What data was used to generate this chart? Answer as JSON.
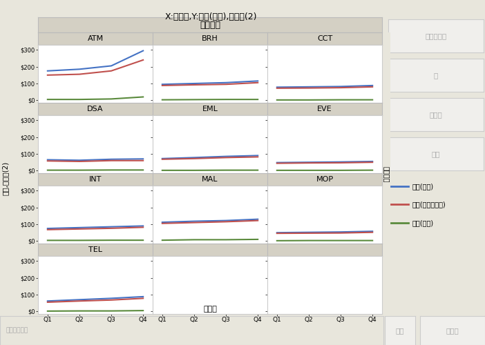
{
  "title": "X:四半期,Y:平均(収益),その他(2)",
  "xlabel": "四半期",
  "ylabel": "収益,その他(2)",
  "channel_header": "チャネル",
  "quarters": [
    "Q1",
    "Q2",
    "Q3",
    "Q4"
  ],
  "channels_grid": [
    [
      "ATM",
      "BRH",
      "CCT"
    ],
    [
      "DSA",
      "EML",
      "EVE"
    ],
    [
      "INT",
      "MAL",
      "MOP"
    ],
    [
      "TEL",
      null,
      null
    ]
  ],
  "series": {
    "ATM": {
      "revenue": [
        175,
        185,
        205,
        295
      ],
      "cogs": [
        150,
        155,
        175,
        240
      ],
      "profit": [
        5,
        5,
        8,
        20
      ]
    },
    "BRH": {
      "revenue": [
        95,
        100,
        105,
        115
      ],
      "cogs": [
        88,
        92,
        95,
        105
      ],
      "profit": [
        3,
        4,
        5,
        5
      ]
    },
    "CCT": {
      "revenue": [
        78,
        80,
        82,
        88
      ],
      "cogs": [
        72,
        73,
        75,
        80
      ],
      "profit": [
        2,
        2,
        3,
        3
      ]
    },
    "DSA": {
      "revenue": [
        65,
        62,
        68,
        70
      ],
      "cogs": [
        58,
        55,
        60,
        60
      ],
      "profit": [
        3,
        3,
        4,
        4
      ]
    },
    "EML": {
      "revenue": [
        72,
        78,
        85,
        90
      ],
      "cogs": [
        68,
        72,
        78,
        82
      ],
      "profit": [
        2,
        2,
        3,
        3
      ]
    },
    "EVE": {
      "revenue": [
        48,
        50,
        52,
        55
      ],
      "cogs": [
        44,
        46,
        47,
        50
      ],
      "profit": [
        2,
        2,
        2,
        3
      ]
    },
    "INT": {
      "revenue": [
        75,
        80,
        85,
        90
      ],
      "cogs": [
        68,
        72,
        76,
        82
      ],
      "profit": [
        4,
        4,
        5,
        5
      ]
    },
    "MAL": {
      "revenue": [
        112,
        118,
        122,
        130
      ],
      "cogs": [
        105,
        110,
        115,
        122
      ],
      "profit": [
        5,
        8,
        8,
        10
      ]
    },
    "MOP": {
      "revenue": [
        50,
        52,
        54,
        58
      ],
      "cogs": [
        46,
        47,
        48,
        52
      ],
      "profit": [
        2,
        3,
        3,
        3
      ]
    },
    "TEL": {
      "revenue": [
        62,
        70,
        78,
        88
      ],
      "cogs": [
        55,
        62,
        68,
        78
      ],
      "profit": [
        2,
        3,
        3,
        5
      ]
    }
  },
  "colors": {
    "revenue": "#4472C4",
    "cogs": "#C0504D",
    "profit": "#5A8A3C"
  },
  "legend_labels": [
    "平均(収益)",
    "平均(商品コスト)",
    "平均(利益)"
  ],
  "yticks": [
    0,
    100,
    200,
    300
  ],
  "ylim": [
    -15,
    330
  ],
  "bg_color": "#E8E6DC",
  "plot_bg": "#FFFFFF",
  "header_bg": "#D4D0C4",
  "panel_bg": "#E8E6DC",
  "right_panel_buttons": [
    "重ね合わせ",
    "色",
    "サイズ",
    "区間"
  ],
  "bottom_left_label": "地図シェープ",
  "bottom_right_buttons": [
    "度数",
    "ページ"
  ],
  "rotated_label": "チャネル"
}
